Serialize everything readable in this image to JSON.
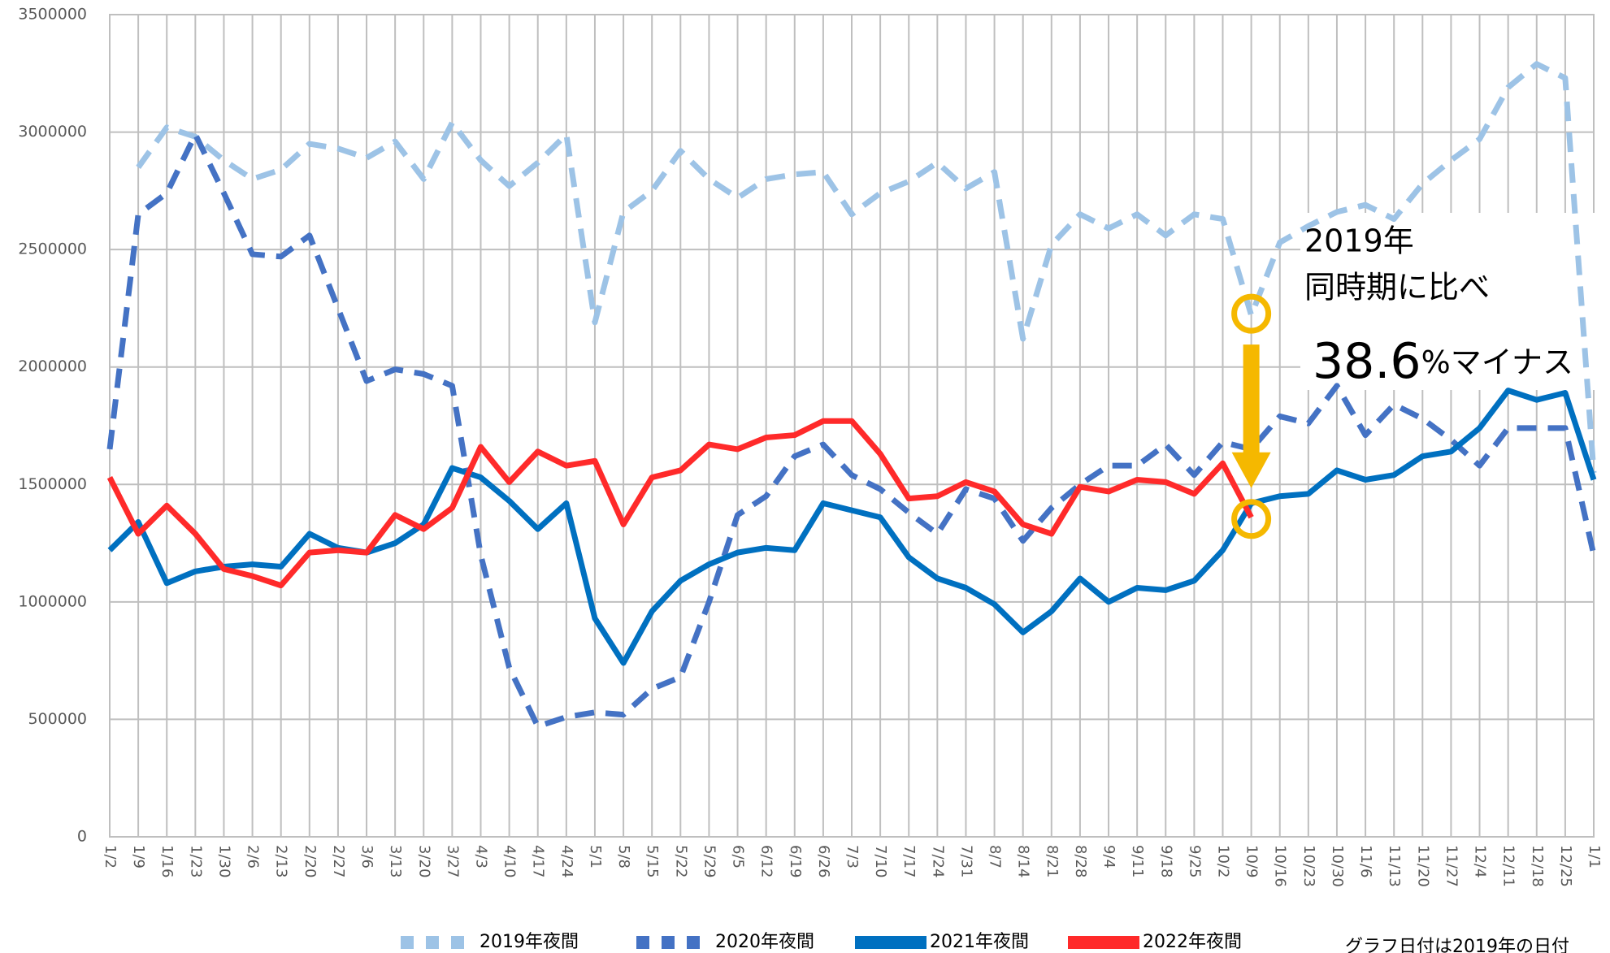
{
  "chart_data": {
    "type": "line",
    "categories": [
      "1/2",
      "1/9",
      "1/16",
      "1/23",
      "1/30",
      "2/6",
      "2/13",
      "2/20",
      "2/27",
      "3/6",
      "3/13",
      "3/20",
      "3/27",
      "4/3",
      "4/10",
      "4/17",
      "4/24",
      "5/1",
      "5/8",
      "5/15",
      "5/22",
      "5/29",
      "6/5",
      "6/12",
      "6/19",
      "6/26",
      "7/3",
      "7/10",
      "7/17",
      "7/24",
      "7/31",
      "8/7",
      "8/14",
      "8/21",
      "8/28",
      "9/4",
      "9/11",
      "9/18",
      "9/25",
      "10/2",
      "10/9",
      "10/16",
      "10/23",
      "10/30",
      "11/6",
      "11/13",
      "11/20",
      "11/27",
      "12/4",
      "12/11",
      "12/18",
      "12/25",
      "1/1"
    ],
    "series": [
      {
        "name": "2019年夜間",
        "color": "#9dc3e6",
        "dash": true,
        "values": [
          null,
          2850000,
          3020000,
          2980000,
          2880000,
          2800000,
          2840000,
          2950000,
          2930000,
          2890000,
          2960000,
          2800000,
          3040000,
          2880000,
          2770000,
          2870000,
          2990000,
          2190000,
          2660000,
          2750000,
          2920000,
          2800000,
          2720000,
          2800000,
          2820000,
          2830000,
          2650000,
          2740000,
          2790000,
          2870000,
          2760000,
          2830000,
          2120000,
          2520000,
          2650000,
          2590000,
          2650000,
          2560000,
          2650000,
          2630000,
          2220000,
          2530000,
          2600000,
          2660000,
          2690000,
          2630000,
          2780000,
          2880000,
          2970000,
          3190000,
          3290000,
          3230000,
          1550000
        ]
      },
      {
        "name": "2020年夜間",
        "color": "#4472c4",
        "dash": true,
        "values": [
          1650000,
          2650000,
          2740000,
          2990000,
          2740000,
          2480000,
          2470000,
          2560000,
          2250000,
          1940000,
          1990000,
          1970000,
          1920000,
          1200000,
          720000,
          470000,
          510000,
          530000,
          520000,
          630000,
          680000,
          1000000,
          1370000,
          1450000,
          1620000,
          1670000,
          1540000,
          1480000,
          1380000,
          1290000,
          1480000,
          1440000,
          1260000,
          1400000,
          1500000,
          1580000,
          1580000,
          1670000,
          1540000,
          1680000,
          1650000,
          1790000,
          1760000,
          1920000,
          1710000,
          1840000,
          1780000,
          1690000,
          1580000,
          1740000,
          1740000,
          1740000,
          1200000
        ]
      },
      {
        "name": "2021年夜間",
        "color": "#0070c0",
        "dash": false,
        "values": [
          1220000,
          1340000,
          1080000,
          1130000,
          1150000,
          1160000,
          1150000,
          1290000,
          1230000,
          1210000,
          1250000,
          1330000,
          1570000,
          1530000,
          1430000,
          1310000,
          1420000,
          930000,
          740000,
          960000,
          1090000,
          1160000,
          1210000,
          1230000,
          1220000,
          1420000,
          1390000,
          1360000,
          1190000,
          1100000,
          1060000,
          990000,
          870000,
          960000,
          1100000,
          1000000,
          1060000,
          1050000,
          1090000,
          1220000,
          1420000,
          1450000,
          1460000,
          1560000,
          1520000,
          1540000,
          1620000,
          1640000,
          1740000,
          1900000,
          1860000,
          1890000,
          1520000
        ]
      },
      {
        "name": "2022年夜間",
        "color": "#ff2a2a",
        "dash": false,
        "values": [
          1530000,
          1290000,
          1410000,
          1290000,
          1140000,
          1110000,
          1070000,
          1210000,
          1220000,
          1210000,
          1370000,
          1310000,
          1400000,
          1660000,
          1510000,
          1640000,
          1580000,
          1600000,
          1330000,
          1530000,
          1560000,
          1670000,
          1650000,
          1700000,
          1710000,
          1770000,
          1770000,
          1630000,
          1440000,
          1450000,
          1510000,
          1470000,
          1330000,
          1290000,
          1490000,
          1470000,
          1520000,
          1510000,
          1460000,
          1590000,
          1360000,
          null,
          null,
          null,
          null,
          null,
          null,
          null,
          null,
          null,
          null,
          null,
          null
        ]
      }
    ],
    "ylim": [
      0,
      3500000
    ],
    "yticks": [
      0,
      500000,
      1000000,
      1500000,
      2000000,
      2500000,
      3000000,
      3500000
    ],
    "grid": true,
    "annotation_line1": "2019年",
    "annotation_line2": "同時期に比べ",
    "annotation_number": "38.6",
    "annotation_unit": "%マイナス",
    "annotation_color": "#f5b800",
    "note": "グラフ日付は2019年の日付"
  }
}
